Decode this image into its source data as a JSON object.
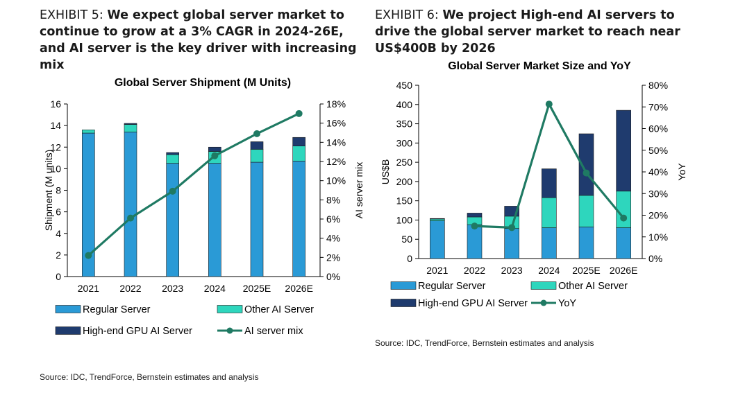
{
  "exhibits": [
    {
      "label": "EXHIBIT 5:",
      "headline": "We expect global server market to continue to grow at a 3% CAGR in 2024-26E, and AI server is the key driver with increasing mix",
      "source": "Source: IDC, TrendForce, Bernstein estimates and analysis"
    },
    {
      "label": "EXHIBIT 6:",
      "headline": "We project High-end AI servers to drive the global server market to reach near US$400B by 2026",
      "source": "Source: IDC, TrendForce, Bernstein estimates and analysis"
    }
  ],
  "colors": {
    "regular": "#2a9ad6",
    "other_ai": "#2ed6bd",
    "high_end": "#1f3b6e",
    "line": "#1f7a63"
  },
  "chart_data": [
    {
      "type": "bar",
      "stacked": true,
      "title": "Global Server Shipment (M Units)",
      "ylabel": "Shipment (M units)",
      "y2label": "AI server mix",
      "categories": [
        "2021",
        "2022",
        "2023",
        "2024",
        "2025E",
        "2026E"
      ],
      "ylim": [
        0,
        16
      ],
      "yticks": [
        "0",
        "2",
        "4",
        "6",
        "8",
        "10",
        "12",
        "14",
        "16"
      ],
      "y2lim": [
        0,
        18
      ],
      "y2ticks": [
        "0%",
        "2%",
        "4%",
        "6%",
        "8%",
        "10%",
        "12%",
        "14%",
        "16%",
        "18%"
      ],
      "series": [
        {
          "name": "Regular Server",
          "axis": "left",
          "kind": "bar",
          "values": [
            13.3,
            13.4,
            10.5,
            10.5,
            10.6,
            10.7
          ]
        },
        {
          "name": "Other AI Server",
          "axis": "left",
          "kind": "bar",
          "values": [
            0.3,
            0.7,
            0.8,
            1.1,
            1.2,
            1.4
          ]
        },
        {
          "name": "High-end GPU AI Server",
          "axis": "left",
          "kind": "bar",
          "values": [
            0.0,
            0.1,
            0.2,
            0.4,
            0.7,
            0.8
          ]
        },
        {
          "name": "AI server mix",
          "axis": "right",
          "kind": "line",
          "values": [
            2.2,
            6.1,
            8.9,
            12.6,
            14.9,
            17.0
          ]
        }
      ],
      "legend": [
        "Regular Server",
        "Other AI Server",
        "High-end GPU AI Server",
        "AI server mix"
      ],
      "legend_position": "bottom"
    },
    {
      "type": "bar",
      "stacked": true,
      "title": "Global Server Market Size and YoY",
      "ylabel": "US$B",
      "y2label": "YoY",
      "categories": [
        "2021",
        "2022",
        "2023",
        "2024",
        "2025E",
        "2026E"
      ],
      "ylim": [
        0,
        450
      ],
      "yticks": [
        "0",
        "50",
        "100",
        "150",
        "200",
        "250",
        "300",
        "350",
        "400",
        "450"
      ],
      "y2lim": [
        0,
        80
      ],
      "y2ticks": [
        "0%",
        "10%",
        "20%",
        "30%",
        "40%",
        "50%",
        "60%",
        "70%",
        "80%"
      ],
      "series": [
        {
          "name": "Regular Server",
          "axis": "left",
          "kind": "bar",
          "values": [
            98,
            88,
            78,
            80,
            82,
            80
          ]
        },
        {
          "name": "Other AI Server",
          "axis": "left",
          "kind": "bar",
          "values": [
            5,
            20,
            32,
            78,
            82,
            95
          ]
        },
        {
          "name": "High-end GPU AI Server",
          "axis": "left",
          "kind": "bar",
          "values": [
            1,
            10,
            26,
            75,
            160,
            210
          ]
        },
        {
          "name": "YoY",
          "axis": "right",
          "kind": "line",
          "values": [
            null,
            15.0,
            14.3,
            71.3,
            39.5,
            18.7
          ]
        }
      ],
      "legend": [
        "Regular Server",
        "Other AI Server",
        "High-end GPU AI Server",
        "YoY"
      ],
      "legend_position": "bottom"
    }
  ]
}
